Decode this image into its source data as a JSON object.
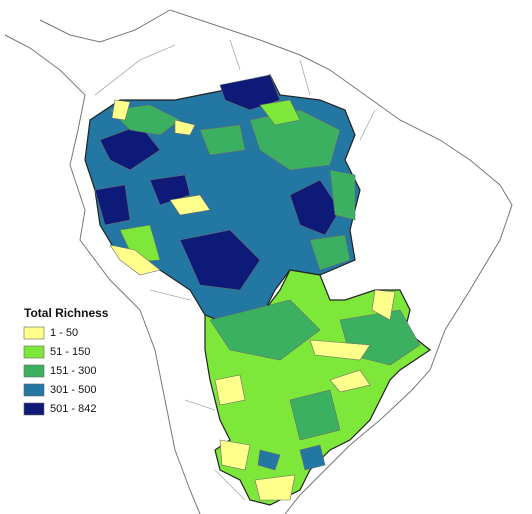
{
  "legend": {
    "title": "Total Richness",
    "items": [
      {
        "label": "1 - 50",
        "color": "#ffff8c"
      },
      {
        "label": "51 - 150",
        "color": "#7de83a"
      },
      {
        "label": "151 - 300",
        "color": "#3cb061"
      },
      {
        "label": "301 - 500",
        "color": "#2277a3"
      },
      {
        "label": "501 - 842",
        "color": "#0d1a78"
      }
    ]
  }
}
